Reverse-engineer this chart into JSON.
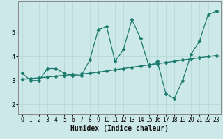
{
  "xlabel": "Humidex (Indice chaleur)",
  "background_color": "#cce8e8",
  "line_color": "#1a7a6e",
  "grid_color": "#b8d8d8",
  "xlim": [
    -0.5,
    23.5
  ],
  "ylim": [
    1.6,
    6.3
  ],
  "yticks": [
    2,
    3,
    4,
    5
  ],
  "xticks": [
    0,
    1,
    2,
    3,
    4,
    5,
    6,
    7,
    8,
    9,
    10,
    11,
    12,
    13,
    14,
    15,
    16,
    17,
    18,
    19,
    20,
    21,
    22,
    23
  ],
  "series1_x": [
    0,
    1,
    2,
    3,
    4,
    5,
    6,
    7,
    8,
    9,
    10,
    11,
    12,
    13,
    14,
    15,
    16,
    17,
    18,
    19,
    20,
    21,
    22,
    23
  ],
  "series1_y": [
    3.3,
    3.0,
    3.0,
    3.5,
    3.5,
    3.3,
    3.2,
    3.2,
    3.85,
    5.1,
    5.25,
    3.8,
    4.3,
    5.55,
    4.75,
    3.6,
    3.8,
    2.45,
    2.25,
    3.0,
    4.1,
    4.65,
    5.75,
    5.9
  ],
  "series2_x": [
    0,
    1,
    2,
    3,
    4,
    5,
    6,
    7,
    8,
    9,
    10,
    11,
    12,
    13,
    14,
    15,
    16,
    17,
    18,
    19,
    20,
    21,
    22,
    23
  ],
  "series2_y": [
    3.05,
    3.08,
    3.11,
    3.14,
    3.18,
    3.21,
    3.24,
    3.27,
    3.3,
    3.35,
    3.4,
    3.45,
    3.5,
    3.55,
    3.6,
    3.65,
    3.7,
    3.75,
    3.8,
    3.85,
    3.9,
    3.95,
    4.0,
    4.05
  ],
  "xlabel_fontsize": 7,
  "tick_fontsize": 5.5
}
